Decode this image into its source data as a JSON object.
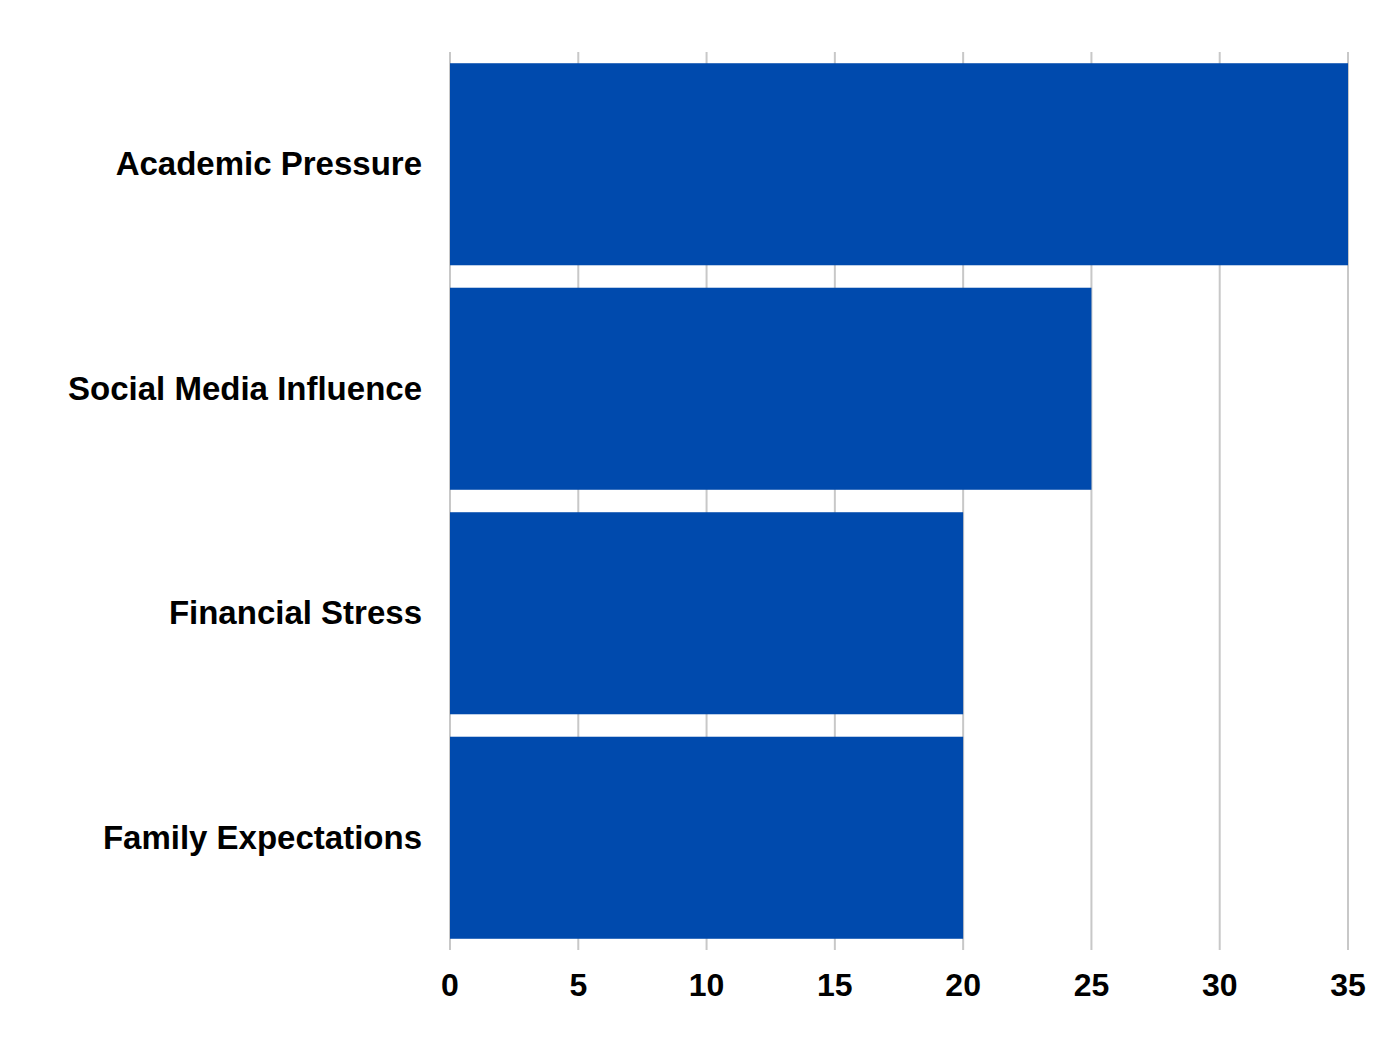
{
  "chart_data": {
    "type": "bar",
    "orientation": "horizontal",
    "categories": [
      "Academic Pressure",
      "Social Media Influence",
      "Financial Stress",
      "Family Expectations"
    ],
    "values": [
      35,
      25,
      20,
      20
    ],
    "color": "#004aad",
    "xlim": [
      0,
      35
    ],
    "xticks": [
      0,
      5,
      10,
      15,
      20,
      25,
      30,
      35
    ],
    "grid": true
  }
}
